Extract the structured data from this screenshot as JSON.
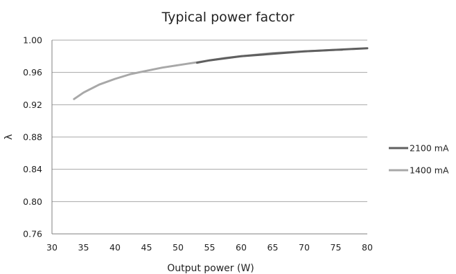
{
  "chart_data": {
    "type": "line",
    "title": "Typical power factor",
    "xlabel": "Output power (W)",
    "ylabel": "λ",
    "xlim": [
      30,
      80
    ],
    "ylim": [
      0.76,
      1.0
    ],
    "x_ticks": [
      "30",
      "35",
      "40",
      "45",
      "50",
      "55",
      "60",
      "65",
      "70",
      "75",
      "80"
    ],
    "y_ticks": [
      "1.00",
      "0.96",
      "0.92",
      "0.88",
      "0.84",
      "0.80",
      "0.76"
    ],
    "grid": true,
    "legend_position": "right",
    "series": [
      {
        "name": "2100 mA",
        "color": "#5f5f5f",
        "x": [
          53,
          55,
          60,
          65,
          70,
          75,
          80
        ],
        "y": [
          0.972,
          0.975,
          0.98,
          0.983,
          0.986,
          0.988,
          0.99
        ]
      },
      {
        "name": "1400 mA",
        "color": "#a8a8a8",
        "x": [
          33.5,
          35,
          37.5,
          40,
          42.5,
          45,
          47.5,
          50,
          52.5,
          55,
          57.5,
          60,
          62.5,
          65,
          67.5,
          70,
          72.5,
          75,
          76
        ],
        "y": [
          0.927,
          0.935,
          0.945,
          0.952,
          0.958,
          0.962,
          0.966,
          0.969,
          0.972,
          0.975,
          0.978,
          0.98,
          0.982,
          0.984,
          0.985,
          0.986,
          0.987,
          0.988,
          0.988
        ]
      }
    ]
  }
}
